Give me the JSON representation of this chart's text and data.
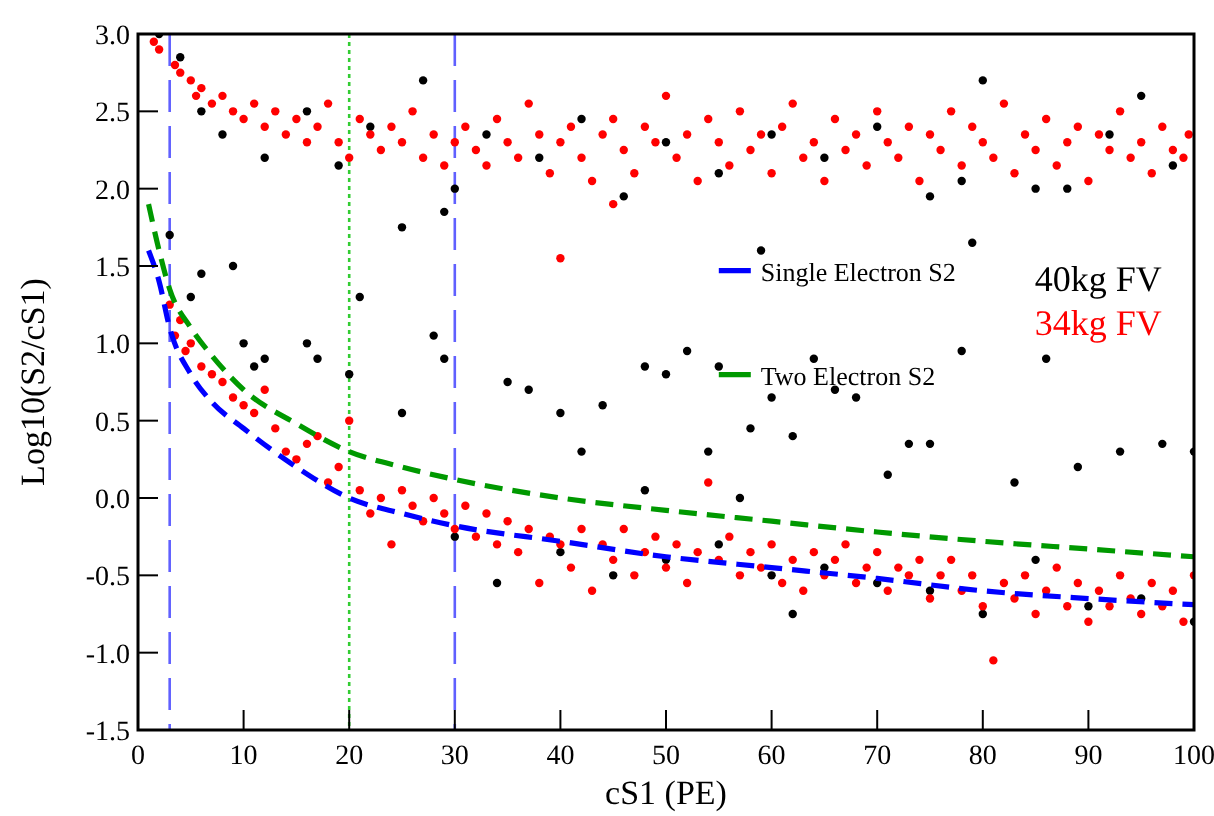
{
  "chart_data": {
    "type": "scatter",
    "xlabel": "cS1 (PE)",
    "ylabel": "Log10(S2/cS1)",
    "xlim": [
      0,
      100
    ],
    "ylim": [
      -1.5,
      3.0
    ],
    "xticks": [
      0,
      10,
      20,
      30,
      40,
      50,
      60,
      70,
      80,
      90,
      100
    ],
    "yticks": [
      {
        "value": -1.5,
        "label": "-1.5"
      },
      {
        "value": -1,
        "label": "-1.0"
      },
      {
        "value": -0.5,
        "label": "-0.5"
      },
      {
        "value": 0,
        "label": "0.0"
      },
      {
        "value": 0.5,
        "label": "0.5"
      },
      {
        "value": 1,
        "label": "1.0"
      },
      {
        "value": 1.5,
        "label": "1.5"
      },
      {
        "value": 2,
        "label": "2.0"
      },
      {
        "value": 2.5,
        "label": "2.5"
      },
      {
        "value": 3,
        "label": "3.0"
      }
    ],
    "grid": false,
    "legend": "right",
    "ref_lines": [
      {
        "axis": "x",
        "value": 3,
        "color": "#6060ff",
        "line_style": "dashed"
      },
      {
        "axis": "x",
        "value": 20,
        "color": "#33cc33",
        "line_style": "dotted"
      },
      {
        "axis": "x",
        "value": 30,
        "color": "#6060ff",
        "line_style": "dashed"
      }
    ],
    "series": [
      {
        "name": "40kg FV",
        "marker": "circle",
        "color": "#000000",
        "x": [
          2,
          4,
          6,
          8,
          12,
          16,
          19,
          22,
          27,
          29,
          30,
          33,
          38,
          42,
          46,
          50,
          55,
          60,
          65,
          70,
          75,
          78,
          80,
          85,
          88,
          92,
          95,
          98,
          59,
          79,
          25,
          3,
          5,
          6,
          9,
          10,
          11,
          12,
          16,
          17,
          20,
          21,
          28,
          29,
          25,
          35,
          37,
          40,
          42,
          44,
          48,
          50,
          52,
          54,
          55,
          58,
          60,
          62,
          64,
          66,
          68,
          71,
          73,
          75,
          78,
          83,
          86,
          89,
          93,
          97,
          100,
          48,
          57,
          30,
          34,
          40,
          45,
          50,
          55,
          60,
          65,
          70,
          75,
          80,
          85,
          90,
          95,
          100,
          62
        ],
        "values": [
          3.0,
          2.85,
          2.5,
          2.35,
          2.2,
          2.5,
          2.15,
          2.4,
          2.7,
          1.85,
          2.0,
          2.35,
          2.2,
          2.45,
          1.95,
          2.3,
          2.1,
          2.35,
          2.2,
          2.4,
          1.95,
          2.05,
          2.7,
          2.0,
          2.0,
          2.35,
          2.6,
          2.15,
          1.6,
          1.65,
          1.75,
          1.7,
          1.3,
          1.45,
          1.5,
          1.0,
          0.85,
          0.9,
          1.0,
          0.9,
          0.8,
          1.3,
          1.05,
          0.9,
          0.55,
          0.75,
          0.7,
          0.55,
          0.3,
          0.6,
          0.85,
          0.8,
          0.95,
          0.3,
          0.85,
          0.45,
          0.65,
          0.4,
          0.9,
          0.7,
          0.65,
          0.15,
          0.35,
          0.35,
          0.95,
          0.1,
          0.9,
          0.2,
          0.3,
          0.35,
          0.3,
          0.05,
          0.0,
          -0.25,
          -0.55,
          -0.35,
          -0.5,
          -0.4,
          -0.3,
          -0.5,
          -0.45,
          -0.55,
          -0.6,
          -0.75,
          -0.4,
          -0.7,
          -0.65,
          -0.8,
          -0.75
        ]
      },
      {
        "name": "34kg FV",
        "marker": "circle",
        "color": "#ff0000",
        "x": [
          1.5,
          2,
          3.5,
          4,
          5,
          5.5,
          6,
          7,
          8,
          9,
          10,
          11,
          12,
          13,
          14,
          15,
          16,
          17,
          18,
          19,
          20,
          21,
          22,
          23,
          24,
          25,
          26,
          27,
          28,
          29,
          30,
          31,
          32,
          33,
          34,
          35,
          36,
          37,
          38,
          39,
          40,
          41,
          42,
          43,
          44,
          45,
          46,
          47,
          48,
          49,
          50,
          51,
          52,
          53,
          54,
          55,
          56,
          57,
          58,
          59,
          60,
          61,
          62,
          63,
          64,
          65,
          66,
          67,
          68,
          69,
          70,
          71,
          72,
          73,
          74,
          75,
          76,
          77,
          78,
          79,
          80,
          81,
          82,
          83,
          84,
          85,
          86,
          87,
          88,
          89,
          90,
          91,
          92,
          93,
          94,
          95,
          96,
          97,
          98,
          99,
          99.5,
          40,
          45,
          3,
          3.5,
          4,
          4.5,
          5,
          6,
          7,
          8,
          9,
          10,
          11,
          12,
          13,
          14,
          15,
          16,
          17,
          18,
          19,
          20,
          21,
          22,
          23,
          24,
          25,
          26,
          27,
          28,
          29,
          30,
          31,
          32,
          33,
          34,
          35,
          36,
          37,
          38,
          39,
          40,
          41,
          42,
          43,
          44,
          45,
          46,
          47,
          48,
          49,
          50,
          51,
          52,
          53,
          54,
          55,
          56,
          57,
          58,
          59,
          60,
          61,
          62,
          63,
          64,
          65,
          66,
          67,
          68,
          69,
          70,
          71,
          72,
          73,
          74,
          75,
          76,
          77,
          78,
          79,
          80,
          81,
          82,
          83,
          84,
          85,
          86,
          87,
          88,
          89,
          90,
          91,
          92,
          93,
          94,
          95,
          96,
          97,
          98,
          99,
          100
        ],
        "values": [
          2.95,
          2.9,
          2.8,
          2.75,
          2.7,
          2.6,
          2.65,
          2.55,
          2.6,
          2.5,
          2.45,
          2.55,
          2.4,
          2.5,
          2.35,
          2.45,
          2.3,
          2.4,
          2.55,
          2.3,
          2.2,
          2.45,
          2.35,
          2.25,
          2.4,
          2.3,
          2.5,
          2.2,
          2.35,
          2.15,
          2.3,
          2.4,
          2.25,
          2.15,
          2.45,
          2.3,
          2.2,
          2.55,
          2.35,
          2.1,
          2.3,
          2.4,
          2.2,
          2.05,
          2.35,
          2.45,
          2.25,
          2.1,
          2.4,
          2.3,
          2.6,
          2.2,
          2.35,
          2.05,
          2.45,
          2.3,
          2.15,
          2.5,
          2.25,
          2.35,
          2.1,
          2.4,
          2.55,
          2.2,
          2.3,
          2.05,
          2.45,
          2.25,
          2.35,
          2.15,
          2.5,
          2.3,
          2.2,
          2.4,
          2.05,
          2.35,
          2.25,
          2.5,
          2.15,
          2.4,
          2.3,
          2.2,
          2.55,
          2.1,
          2.35,
          2.25,
          2.45,
          2.15,
          2.3,
          2.4,
          2.05,
          2.35,
          2.25,
          2.5,
          2.2,
          2.3,
          2.1,
          2.4,
          2.25,
          2.2,
          2.35,
          1.55,
          1.9,
          1.25,
          1.05,
          1.15,
          0.95,
          1.0,
          0.85,
          0.8,
          0.75,
          0.65,
          0.6,
          0.55,
          0.7,
          0.45,
          0.3,
          0.25,
          0.35,
          0.4,
          0.1,
          0.2,
          0.5,
          0.05,
          -0.1,
          0.0,
          -0.3,
          0.05,
          -0.05,
          -0.15,
          0.0,
          -0.1,
          -0.2,
          -0.05,
          -0.25,
          -0.1,
          -0.3,
          -0.15,
          -0.35,
          -0.2,
          -0.55,
          -0.25,
          -0.3,
          -0.45,
          -0.2,
          -0.6,
          -0.3,
          -0.4,
          -0.2,
          -0.5,
          -0.35,
          -0.25,
          -0.45,
          -0.3,
          -0.55,
          -0.35,
          0.1,
          -0.4,
          -0.25,
          -0.5,
          -0.35,
          -0.45,
          -0.3,
          -0.55,
          -0.4,
          -0.6,
          -0.35,
          -0.5,
          -0.4,
          -0.3,
          -0.55,
          -0.45,
          -0.35,
          -0.6,
          -0.45,
          -0.5,
          -0.4,
          -0.65,
          -0.5,
          -0.4,
          -0.6,
          -0.5,
          -0.7,
          -1.05,
          -0.55,
          -0.65,
          -0.5,
          -0.75,
          -0.6,
          -0.45,
          -0.7,
          -0.55,
          -0.8,
          -0.6,
          -0.7,
          -0.5,
          -0.65,
          -0.75,
          -0.55,
          -0.7,
          -0.6,
          -0.8,
          -0.5
        ]
      },
      {
        "name": "Single Electron S2",
        "type": "line",
        "line_style": "dashed",
        "color": "#0000ff",
        "x": [
          1,
          2,
          3,
          5,
          7,
          10,
          15,
          20,
          25,
          30,
          40,
          50,
          60,
          70,
          80,
          90,
          100
        ],
        "values": [
          1.6,
          1.4,
          1.1,
          0.8,
          0.62,
          0.45,
          0.2,
          0.0,
          -0.1,
          -0.18,
          -0.28,
          -0.38,
          -0.45,
          -0.52,
          -0.6,
          -0.65,
          -0.69
        ]
      },
      {
        "name": "Two Electron S2",
        "type": "line",
        "line_style": "dashed",
        "color": "#009900",
        "x": [
          1,
          2,
          3,
          5,
          7,
          10,
          15,
          20,
          25,
          30,
          40,
          50,
          60,
          70,
          80,
          90,
          100
        ],
        "values": [
          1.9,
          1.6,
          1.35,
          1.1,
          0.92,
          0.7,
          0.48,
          0.3,
          0.2,
          0.12,
          0.0,
          -0.08,
          -0.15,
          -0.22,
          -0.28,
          -0.33,
          -0.38
        ]
      }
    ]
  }
}
